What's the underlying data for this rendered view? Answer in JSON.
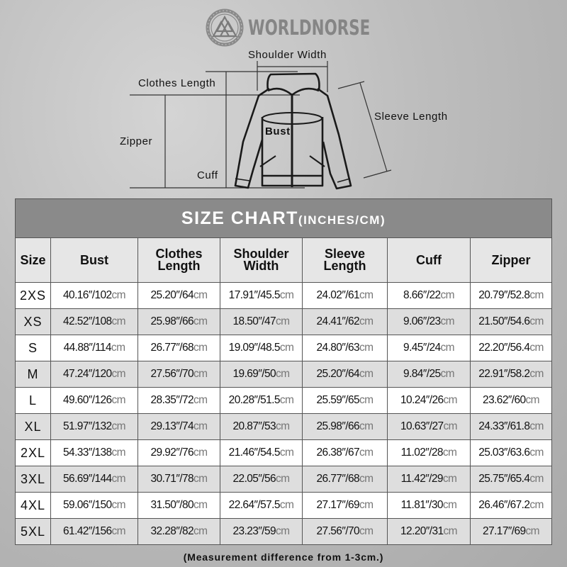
{
  "brand": {
    "name": "WORLDNORSE",
    "logo_icon": "valknut-knot-circle-icon"
  },
  "diagram": {
    "labels": {
      "shoulder_width": "Shoulder Width",
      "clothes_length": "Clothes Length",
      "sleeve_length": "Sleeve Length",
      "zipper": "Zipper",
      "bust": "Bust",
      "cuff": "Cuff"
    }
  },
  "table": {
    "title": "SIZE CHART",
    "title_units": "(INCHES/CM)",
    "headers": [
      "Size",
      "Bust",
      "Clothes Length",
      "Shoulder Width",
      "Sleeve Length",
      "Cuff",
      "Zipper"
    ],
    "inch_mark": "″",
    "unit": "cm",
    "colors": {
      "title_bg": "#8a8a8a",
      "row_alt_bg": "#dedede"
    },
    "rows": [
      {
        "size": "2XS",
        "values": [
          [
            "40.16",
            "102"
          ],
          [
            "25.20",
            "64"
          ],
          [
            "17.91",
            "45.5"
          ],
          [
            "24.02",
            "61"
          ],
          [
            "8.66",
            "22"
          ],
          [
            "20.79",
            "52.8"
          ]
        ]
      },
      {
        "size": "XS",
        "values": [
          [
            "42.52",
            "108"
          ],
          [
            "25.98",
            "66"
          ],
          [
            "18.50",
            "47"
          ],
          [
            "24.41",
            "62"
          ],
          [
            "9.06",
            "23"
          ],
          [
            "21.50",
            "54.6"
          ]
        ]
      },
      {
        "size": "S",
        "values": [
          [
            "44.88",
            "114"
          ],
          [
            "26.77",
            "68"
          ],
          [
            "19.09",
            "48.5"
          ],
          [
            "24.80",
            "63"
          ],
          [
            "9.45",
            "24"
          ],
          [
            "22.20",
            "56.4"
          ]
        ]
      },
      {
        "size": "M",
        "values": [
          [
            "47.24",
            "120"
          ],
          [
            "27.56",
            "70"
          ],
          [
            "19.69",
            "50"
          ],
          [
            "25.20",
            "64"
          ],
          [
            "9.84",
            "25"
          ],
          [
            "22.91",
            "58.2"
          ]
        ]
      },
      {
        "size": "L",
        "values": [
          [
            "49.60",
            "126"
          ],
          [
            "28.35",
            "72"
          ],
          [
            "20.28",
            "51.5"
          ],
          [
            "25.59",
            "65"
          ],
          [
            "10.24",
            "26"
          ],
          [
            "23.62",
            "60"
          ]
        ]
      },
      {
        "size": "XL",
        "values": [
          [
            "51.97",
            "132"
          ],
          [
            "29.13",
            "74"
          ],
          [
            "20.87",
            "53"
          ],
          [
            "25.98",
            "66"
          ],
          [
            "10.63",
            "27"
          ],
          [
            "24.33",
            "61.8"
          ]
        ]
      },
      {
        "size": "2XL",
        "values": [
          [
            "54.33",
            "138"
          ],
          [
            "29.92",
            "76"
          ],
          [
            "21.46",
            "54.5"
          ],
          [
            "26.38",
            "67"
          ],
          [
            "11.02",
            "28"
          ],
          [
            "25.03",
            "63.6"
          ]
        ]
      },
      {
        "size": "3XL",
        "values": [
          [
            "56.69",
            "144"
          ],
          [
            "30.71",
            "78"
          ],
          [
            "22.05",
            "56"
          ],
          [
            "26.77",
            "68"
          ],
          [
            "11.42",
            "29"
          ],
          [
            "25.75",
            "65.4"
          ]
        ]
      },
      {
        "size": "4XL",
        "values": [
          [
            "59.06",
            "150"
          ],
          [
            "31.50",
            "80"
          ],
          [
            "22.64",
            "57.5"
          ],
          [
            "27.17",
            "69"
          ],
          [
            "11.81",
            "30"
          ],
          [
            "26.46",
            "67.2"
          ]
        ]
      },
      {
        "size": "5XL",
        "values": [
          [
            "61.42",
            "156"
          ],
          [
            "32.28",
            "82"
          ],
          [
            "23.23",
            "59"
          ],
          [
            "27.56",
            "70"
          ],
          [
            "12.20",
            "31"
          ],
          [
            "27.17",
            "69"
          ]
        ]
      }
    ]
  },
  "note": "(Measurement difference from 1-3cm.)"
}
